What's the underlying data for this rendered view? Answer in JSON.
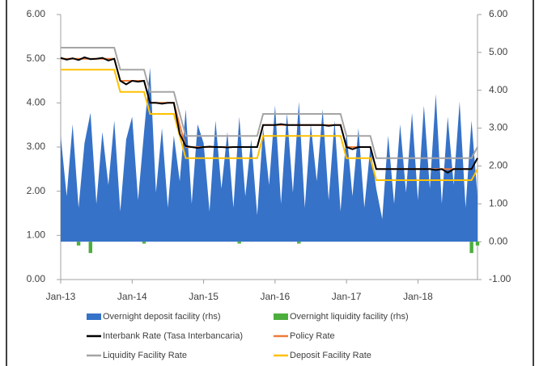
{
  "chart_data": {
    "type": "line",
    "categories": [
      "Jan-13",
      null,
      null,
      null,
      null,
      null,
      null,
      null,
      null,
      null,
      null,
      null,
      "Jan-14",
      null,
      null,
      null,
      null,
      null,
      null,
      null,
      null,
      null,
      null,
      null,
      "Jan-15",
      null,
      null,
      null,
      null,
      null,
      null,
      null,
      null,
      null,
      null,
      null,
      "Jan-16",
      null,
      null,
      null,
      null,
      null,
      null,
      null,
      null,
      null,
      null,
      null,
      "Jan-17",
      null,
      null,
      null,
      null,
      null,
      null,
      null,
      null,
      null,
      null,
      null,
      "Jan-18",
      null,
      null,
      null,
      null,
      null,
      null,
      null,
      null,
      null,
      null
    ],
    "ylim": [
      0,
      6
    ],
    "yticks": [
      {
        "value": 0,
        "label": "0.00"
      },
      {
        "value": 1,
        "label": "1.00"
      },
      {
        "value": 2,
        "label": "2.00"
      },
      {
        "value": 3,
        "label": "3.00"
      },
      {
        "value": 4,
        "label": "4.00"
      },
      {
        "value": 5,
        "label": "5.00"
      },
      {
        "value": 6,
        "label": "6.00"
      }
    ],
    "y2lim": [
      -1,
      6
    ],
    "y2ticks": [
      {
        "value": -1,
        "label": "-1.00"
      },
      {
        "value": 0,
        "label": "0.00"
      },
      {
        "value": 1,
        "label": "1.00"
      },
      {
        "value": 2,
        "label": "2.00"
      },
      {
        "value": 3,
        "label": "3.00"
      },
      {
        "value": 4,
        "label": "4.00"
      },
      {
        "value": 5,
        "label": "5.00"
      },
      {
        "value": 6,
        "label": "6.00"
      }
    ],
    "series": [
      {
        "name": "Overnight deposit facility (rhs)",
        "type": "area",
        "axis": "y2",
        "color": "#3672c8",
        "values": [
          2.8,
          1.2,
          3.1,
          0.9,
          2.6,
          3.4,
          1.0,
          2.9,
          1.5,
          3.2,
          0.8,
          2.7,
          3.3,
          1.1,
          2.9,
          4.6,
          1.3,
          3.0,
          0.9,
          2.8,
          1.6,
          3.5,
          1.0,
          3.1,
          2.6,
          0.8,
          3.2,
          1.4,
          2.9,
          0.9,
          3.3,
          1.2,
          2.7,
          0.7,
          3.0,
          1.5,
          3.6,
          1.0,
          3.4,
          1.3,
          3.7,
          0.9,
          3.1,
          1.6,
          3.5,
          1.1,
          3.2,
          0.8,
          2.9,
          1.2,
          3.0,
          0.9,
          2.5,
          1.4,
          0.6,
          2.8,
          1.0,
          3.1,
          1.3,
          3.4,
          1.1,
          3.6,
          1.4,
          3.9,
          1.0,
          3.3,
          1.5,
          3.7,
          0.9,
          3.2,
          1.2
        ]
      },
      {
        "name": "Overnight liquidity facility (rhs)",
        "type": "bar",
        "axis": "y2",
        "color": "#4cae3c",
        "values": [
          0,
          0,
          0,
          -0.1,
          0,
          -0.3,
          0,
          0,
          0,
          0,
          0,
          0,
          0,
          0,
          -0.05,
          0,
          0,
          0,
          0,
          0,
          0,
          0,
          0,
          0,
          0,
          0,
          0,
          0,
          0,
          0,
          -0.05,
          0,
          0,
          0,
          0,
          0,
          0,
          0,
          0,
          0,
          -0.05,
          0,
          0,
          0,
          0,
          0,
          0,
          0,
          0,
          0,
          0,
          0,
          0,
          0,
          0,
          0,
          0,
          0,
          0,
          0,
          0,
          0,
          0,
          0,
          0,
          0,
          0,
          0,
          0,
          -0.3,
          -0.1
        ]
      },
      {
        "name": "Interbank Rate (Tasa Interbancaria)",
        "type": "line",
        "color": "#000000",
        "values": [
          5.02,
          4.98,
          5.01,
          4.97,
          5.03,
          4.99,
          5.0,
          5.02,
          4.96,
          5.0,
          4.5,
          4.42,
          4.5,
          4.48,
          4.5,
          4.0,
          4.0,
          3.98,
          4.0,
          4.0,
          3.3,
          3.02,
          3.0,
          2.98,
          3.0,
          3.01,
          3.0,
          3.0,
          2.99,
          3.0,
          3.0,
          3.0,
          3.0,
          3.0,
          3.5,
          3.5,
          3.5,
          3.52,
          3.5,
          3.5,
          3.5,
          3.5,
          3.5,
          3.5,
          3.5,
          3.48,
          3.5,
          3.5,
          3.0,
          2.95,
          3.0,
          3.0,
          3.0,
          2.5,
          2.5,
          2.5,
          2.5,
          2.5,
          2.5,
          2.5,
          2.5,
          2.5,
          2.5,
          2.48,
          2.5,
          2.42,
          2.5,
          2.5,
          2.5,
          2.5,
          2.75
        ]
      },
      {
        "name": "Policy Rate",
        "type": "line",
        "color": "#f07c3a",
        "values": [
          5.0,
          5.0,
          5.0,
          5.0,
          5.0,
          5.0,
          5.0,
          5.0,
          5.0,
          5.0,
          4.5,
          4.5,
          4.5,
          4.5,
          4.5,
          4.0,
          4.0,
          4.0,
          4.0,
          4.0,
          3.5,
          3.0,
          3.0,
          3.0,
          3.0,
          3.0,
          3.0,
          3.0,
          3.0,
          3.0,
          3.0,
          3.0,
          3.0,
          3.0,
          3.5,
          3.5,
          3.5,
          3.5,
          3.5,
          3.5,
          3.5,
          3.5,
          3.5,
          3.5,
          3.5,
          3.5,
          3.5,
          3.5,
          3.0,
          3.0,
          3.0,
          3.0,
          3.0,
          2.5,
          2.5,
          2.5,
          2.5,
          2.5,
          2.5,
          2.5,
          2.5,
          2.5,
          2.5,
          2.5,
          2.5,
          2.5,
          2.5,
          2.5,
          2.5,
          2.5,
          2.75
        ]
      },
      {
        "name": "Liquidity Facility Rate",
        "type": "line",
        "color": "#a5a5a5",
        "values": [
          5.25,
          5.25,
          5.25,
          5.25,
          5.25,
          5.25,
          5.25,
          5.25,
          5.25,
          5.25,
          4.75,
          4.75,
          4.75,
          4.75,
          4.75,
          4.25,
          4.25,
          4.25,
          4.25,
          4.25,
          3.75,
          3.25,
          3.25,
          3.25,
          3.25,
          3.25,
          3.25,
          3.25,
          3.25,
          3.25,
          3.25,
          3.25,
          3.25,
          3.25,
          3.75,
          3.75,
          3.75,
          3.75,
          3.75,
          3.75,
          3.75,
          3.75,
          3.75,
          3.75,
          3.75,
          3.75,
          3.75,
          3.75,
          3.25,
          3.25,
          3.25,
          3.25,
          3.25,
          2.75,
          2.75,
          2.75,
          2.75,
          2.75,
          2.75,
          2.75,
          2.75,
          2.75,
          2.75,
          2.75,
          2.75,
          2.75,
          2.75,
          2.75,
          2.75,
          2.75,
          3.0
        ]
      },
      {
        "name": "Deposit Facility Rate",
        "type": "line",
        "color": "#ffc000",
        "values": [
          4.75,
          4.75,
          4.75,
          4.75,
          4.75,
          4.75,
          4.75,
          4.75,
          4.75,
          4.75,
          4.25,
          4.25,
          4.25,
          4.25,
          4.25,
          3.75,
          3.75,
          3.75,
          3.75,
          3.75,
          3.25,
          2.75,
          2.75,
          2.75,
          2.75,
          2.75,
          2.75,
          2.75,
          2.75,
          2.75,
          2.75,
          2.75,
          2.75,
          2.75,
          3.25,
          3.25,
          3.25,
          3.25,
          3.25,
          3.25,
          3.25,
          3.25,
          3.25,
          3.25,
          3.25,
          3.25,
          3.25,
          3.25,
          2.75,
          2.75,
          2.75,
          2.75,
          2.75,
          2.25,
          2.25,
          2.25,
          2.25,
          2.25,
          2.25,
          2.25,
          2.25,
          2.25,
          2.25,
          2.25,
          2.25,
          2.25,
          2.25,
          2.25,
          2.25,
          2.25,
          2.5
        ]
      }
    ]
  }
}
